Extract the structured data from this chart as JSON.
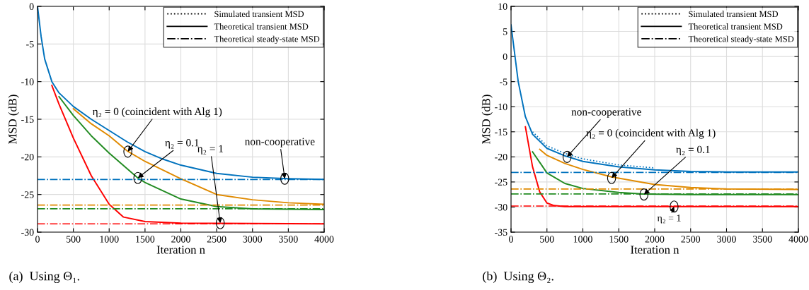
{
  "chart_data": [
    {
      "type": "line",
      "title": "(a)  Using Θ₁.",
      "xlabel": "Iteration n",
      "ylabel": "MSD (dB)",
      "xlim": [
        0,
        4000
      ],
      "xticks": [
        0,
        500,
        1000,
        1500,
        2000,
        2500,
        3000,
        3500,
        4000
      ],
      "ylim": [
        -30,
        0
      ],
      "yticks": [
        -30,
        -25,
        -20,
        -15,
        -10,
        -5,
        0
      ],
      "grid": true,
      "series": [
        {
          "color": "#ff0000",
          "line_style": "solid",
          "x": [
            200,
            300,
            500,
            750,
            1000,
            1200,
            1500,
            2000,
            4000
          ],
          "values": [
            -10.5,
            -13,
            -17.5,
            -22.5,
            -26.3,
            -28,
            -28.6,
            -28.8,
            -28.9
          ]
        },
        {
          "color": "#228b22",
          "line_style": "solid",
          "x": [
            300,
            500,
            750,
            1000,
            1400,
            1500,
            2000,
            2500,
            3000,
            4000
          ],
          "values": [
            -12,
            -14.5,
            -17.2,
            -19.5,
            -22.8,
            -23.4,
            -25.6,
            -26.6,
            -26.9,
            -27
          ]
        },
        {
          "color": "#e08a00",
          "line_style": "solid",
          "x": [
            500,
            750,
            1000,
            1250,
            1500,
            2000,
            2500,
            3000,
            3500,
            4000
          ],
          "values": [
            -13.6,
            -15.6,
            -17.2,
            -19.2,
            -20.6,
            -22.9,
            -25,
            -25.7,
            -26.1,
            -26.3
          ]
        },
        {
          "color": "#0072bd",
          "line_style": "solid",
          "x": [
            0,
            50,
            100,
            200,
            300,
            500,
            750,
            1000,
            1250,
            1500,
            1750,
            2000,
            2500,
            3000,
            3500,
            4000
          ],
          "values": [
            0,
            -4,
            -7,
            -10,
            -11.5,
            -13.3,
            -15,
            -16.5,
            -18,
            -19.3,
            -20.3,
            -21.1,
            -22.2,
            -22.7,
            -22.9,
            -23
          ]
        },
        {
          "color": "#0072bd",
          "line_style": "dashdot",
          "x": [
            0,
            4000
          ],
          "values": [
            -23,
            -23
          ]
        },
        {
          "color": "#e08a00",
          "line_style": "dashdot",
          "x": [
            0,
            4000
          ],
          "values": [
            -26.4,
            -26.4
          ]
        },
        {
          "color": "#228b22",
          "line_style": "dashdot",
          "x": [
            0,
            4000
          ],
          "values": [
            -26.9,
            -26.9
          ]
        },
        {
          "color": "#ff0000",
          "line_style": "dashdot",
          "x": [
            0,
            4000
          ],
          "values": [
            -28.9,
            -28.9
          ]
        }
      ],
      "annotations": [
        "Simulated transient MSD",
        "Theoretical transient MSD",
        "Theoretical steady-state MSD",
        {
          "text": "η₂ = 0 (coincident with Alg 1)",
          "x": 1260,
          "y": -19.3
        },
        {
          "text": "η₂ = 0.1",
          "x": 1400,
          "y": -22.8
        },
        {
          "text": "η₂ = 1",
          "x": 2550,
          "y": -28.8
        },
        {
          "text": "non-cooperative",
          "x": 3450,
          "y": -22.9
        }
      ]
    },
    {
      "type": "line",
      "title": "(b)  Using Θ₂.",
      "xlabel": "Iteration n",
      "ylabel": "MSD (dB)",
      "xlim": [
        0,
        4000
      ],
      "xticks": [
        0,
        500,
        1000,
        1500,
        2000,
        2500,
        3000,
        3500,
        4000
      ],
      "ylim": [
        -35,
        10
      ],
      "yticks": [
        -35,
        -30,
        -25,
        -20,
        -15,
        -10,
        -5,
        0,
        5,
        10
      ],
      "grid": true,
      "series": [
        {
          "color": "#ff0000",
          "line_style": "solid",
          "x": [
            200,
            300,
            400,
            500,
            600,
            750,
            4000
          ],
          "values": [
            -14,
            -22,
            -27,
            -29.2,
            -29.7,
            -29.9,
            -29.9
          ]
        },
        {
          "color": "#228b22",
          "line_style": "solid",
          "x": [
            300,
            500,
            750,
            1000,
            1500,
            1850,
            2500,
            4000
          ],
          "values": [
            -19,
            -23.2,
            -25.3,
            -26.3,
            -27.1,
            -27.4,
            -27.5,
            -27.5
          ]
        },
        {
          "color": "#e08a00",
          "line_style": "solid",
          "x": [
            400,
            500,
            750,
            1000,
            1400,
            2000,
            2500,
            3000,
            4000
          ],
          "values": [
            -18.5,
            -19.7,
            -21.3,
            -22.5,
            -24,
            -25.5,
            -26.1,
            -26.4,
            -26.5
          ]
        },
        {
          "color": "#0072bd",
          "line_style": "solid",
          "x": [
            0,
            100,
            200,
            300,
            500,
            750,
            1000,
            1500,
            2000,
            2500,
            3000,
            4000
          ],
          "values": [
            6.3,
            -5,
            -12,
            -15.5,
            -18.3,
            -19.8,
            -20.9,
            -22,
            -22.6,
            -22.9,
            -23,
            -23
          ]
        },
        {
          "color": "#0072bd",
          "line_style": "dotted",
          "x": [
            300,
            500,
            750,
            1000,
            1500,
            2000
          ],
          "values": [
            -15,
            -17.8,
            -19.3,
            -20.4,
            -21.6,
            -22.2
          ]
        },
        {
          "color": "#0072bd",
          "line_style": "dashdot",
          "x": [
            0,
            4000
          ],
          "values": [
            -23.1,
            -23.1
          ]
        },
        {
          "color": "#e08a00",
          "line_style": "dashdot",
          "x": [
            0,
            4000
          ],
          "values": [
            -26.4,
            -26.4
          ]
        },
        {
          "color": "#228b22",
          "line_style": "dashdot",
          "x": [
            0,
            4000
          ],
          "values": [
            -27.4,
            -27.4
          ]
        },
        {
          "color": "#ff0000",
          "line_style": "dashdot",
          "x": [
            0,
            4000
          ],
          "values": [
            -29.8,
            -29.8
          ]
        }
      ],
      "annotations": [
        "Simulated transient MSD",
        "Theoretical transient MSD",
        "Theoretical steady-state MSD",
        {
          "text": "non-cooperative",
          "x": 780,
          "y": -20
        },
        {
          "text": "η₂ = 0 (coincident with Alg 1)",
          "x": 1400,
          "y": -24.2
        },
        {
          "text": "η₂ = 0.1",
          "x": 1850,
          "y": -27.5
        },
        {
          "text": "η₂ = 1",
          "x": 2270,
          "y": -29.9
        }
      ]
    }
  ]
}
